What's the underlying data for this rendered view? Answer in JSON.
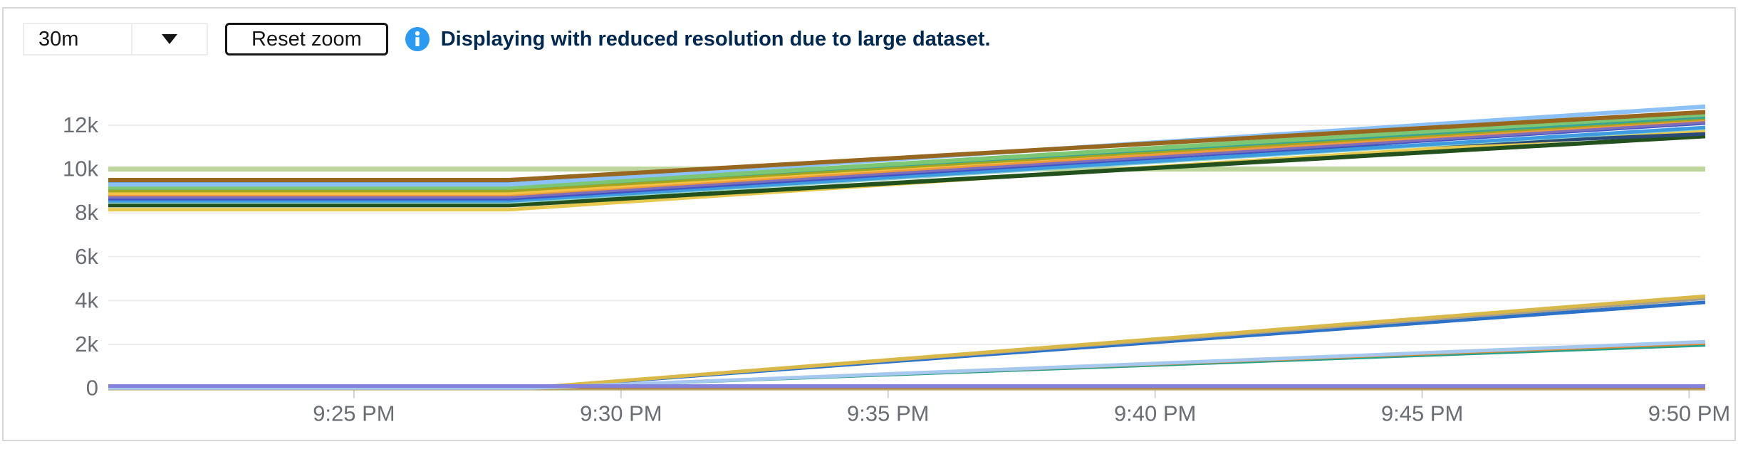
{
  "toolbar": {
    "duration_select": {
      "value": "30m"
    },
    "reset_zoom_label": "Reset zoom",
    "alert": {
      "text": "Displaying with reduced resolution due to large dataset.",
      "icon_color": "#2b9af3",
      "text_color": "#002952"
    }
  },
  "chart_data": {
    "type": "line",
    "title": "",
    "xlabel": "",
    "ylabel": "",
    "grid": true,
    "legend": false,
    "x_axis": {
      "unit": "time",
      "tick_labels": [
        "9:25 PM",
        "9:30 PM",
        "9:35 PM",
        "9:40 PM",
        "9:45 PM",
        "9:50 PM"
      ],
      "tick_minutes": [
        25,
        30,
        35,
        40,
        45,
        50
      ],
      "domain_minutes": [
        20.4,
        50.3
      ]
    },
    "y_axis": {
      "tick_labels": [
        "0",
        "2k",
        "4k",
        "6k",
        "8k",
        "10k",
        "12k"
      ],
      "tick_values": [
        0,
        2000,
        4000,
        6000,
        8000,
        10000,
        12000
      ],
      "range": [
        0,
        13000
      ]
    },
    "series": [
      {
        "name": "flat-light-green-10k",
        "color": "#bdd49a",
        "width": 7,
        "points": [
          [
            20.4,
            10000
          ],
          [
            50.3,
            10000
          ]
        ]
      },
      {
        "name": "khaki-flat-zero",
        "color": "#b5a36a",
        "width": 6,
        "points": [
          [
            20.4,
            0
          ],
          [
            50.3,
            0
          ]
        ]
      },
      {
        "name": "sienna-flat-zero",
        "color": "#a0522d",
        "width": 2.5,
        "points": [
          [
            20.4,
            40
          ],
          [
            50.3,
            40
          ]
        ]
      },
      {
        "name": "gold-bottom",
        "color": "#e8c94f",
        "width": 5,
        "points": [
          [
            20.4,
            8150
          ],
          [
            27.9,
            8150
          ],
          [
            50.3,
            11750
          ]
        ]
      },
      {
        "name": "dark-green",
        "color": "#23511e",
        "width": 6,
        "points": [
          [
            20.4,
            8350
          ],
          [
            27.9,
            8350
          ],
          [
            50.3,
            11500
          ]
        ]
      },
      {
        "name": "navy",
        "color": "#2a4a78",
        "width": 5,
        "points": [
          [
            20.4,
            9400
          ],
          [
            27.9,
            9400
          ],
          [
            50.3,
            11600
          ]
        ]
      },
      {
        "name": "light-cyan",
        "color": "#8fd3c9",
        "width": 4,
        "points": [
          [
            20.4,
            8480
          ],
          [
            27.9,
            8480
          ],
          [
            50.3,
            11850
          ]
        ]
      },
      {
        "name": "bright-blue",
        "color": "#3f9be0",
        "width": 5,
        "points": [
          [
            20.4,
            8550
          ],
          [
            27.9,
            8550
          ],
          [
            50.3,
            11900
          ]
        ]
      },
      {
        "name": "indigo",
        "color": "#4254c5",
        "width": 5,
        "points": [
          [
            20.4,
            8650
          ],
          [
            27.9,
            8650
          ],
          [
            50.3,
            12100
          ]
        ]
      },
      {
        "name": "purple",
        "color": "#7e6fb8",
        "width": 5,
        "points": [
          [
            20.4,
            8730
          ],
          [
            27.9,
            8730
          ],
          [
            50.3,
            12150
          ]
        ]
      },
      {
        "name": "orange",
        "color": "#ec9a3c",
        "width": 4,
        "points": [
          [
            20.4,
            8820
          ],
          [
            27.9,
            8820
          ],
          [
            50.3,
            12250
          ]
        ]
      },
      {
        "name": "gold",
        "color": "#f4c145",
        "width": 5,
        "points": [
          [
            20.4,
            8900
          ],
          [
            27.9,
            8900
          ],
          [
            50.3,
            12400
          ]
        ]
      },
      {
        "name": "olive",
        "color": "#a2a51f",
        "width": 4,
        "points": [
          [
            20.4,
            9000
          ],
          [
            27.9,
            9000
          ],
          [
            50.3,
            12300
          ]
        ]
      },
      {
        "name": "teal",
        "color": "#38a595",
        "width": 3,
        "points": [
          [
            20.4,
            9100
          ],
          [
            27.9,
            9100
          ],
          [
            50.3,
            12350
          ]
        ]
      },
      {
        "name": "medium-green",
        "color": "#7cc674",
        "width": 6,
        "points": [
          [
            20.4,
            9150
          ],
          [
            27.9,
            9150
          ],
          [
            50.3,
            12500
          ]
        ]
      },
      {
        "name": "light-blue",
        "color": "#8bc1f7",
        "width": 6,
        "points": [
          [
            20.4,
            9300
          ],
          [
            27.9,
            9300
          ],
          [
            50.3,
            12850
          ]
        ]
      },
      {
        "name": "brown",
        "color": "#97671f",
        "width": 6,
        "points": [
          [
            20.4,
            9500
          ],
          [
            27.9,
            9500
          ],
          [
            50.3,
            12600
          ]
        ]
      },
      {
        "name": "blue-to-4k",
        "color": "#2b72c8",
        "width": 5,
        "points": [
          [
            20.4,
            20
          ],
          [
            28.3,
            20
          ],
          [
            50.3,
            3920
          ]
        ]
      },
      {
        "name": "warm-gray-to-4k",
        "color": "#a8a08a",
        "width": 4,
        "points": [
          [
            20.4,
            20
          ],
          [
            28.3,
            20
          ],
          [
            50.3,
            4080
          ]
        ]
      },
      {
        "name": "gold-to-4k",
        "color": "#d9b84a",
        "width": 5,
        "points": [
          [
            20.4,
            20
          ],
          [
            28.3,
            20
          ],
          [
            50.3,
            4200
          ]
        ]
      },
      {
        "name": "teal-to-2k",
        "color": "#2aa18a",
        "width": 4,
        "points": [
          [
            20.4,
            10
          ],
          [
            28.3,
            10
          ],
          [
            50.3,
            1960
          ]
        ]
      },
      {
        "name": "orange-to-2k",
        "color": "#d98a3a",
        "width": 3,
        "points": [
          [
            20.4,
            10
          ],
          [
            28.3,
            10
          ],
          [
            50.3,
            2030
          ]
        ]
      },
      {
        "name": "pale-blue-to-2k",
        "color": "#a6c8ee",
        "width": 5,
        "points": [
          [
            20.4,
            10
          ],
          [
            28.3,
            10
          ],
          [
            50.3,
            2120
          ]
        ]
      },
      {
        "name": "purple-flat-zero",
        "color": "#8481dd",
        "width": 5,
        "points": [
          [
            20.4,
            100
          ],
          [
            50.3,
            100
          ]
        ]
      }
    ]
  }
}
